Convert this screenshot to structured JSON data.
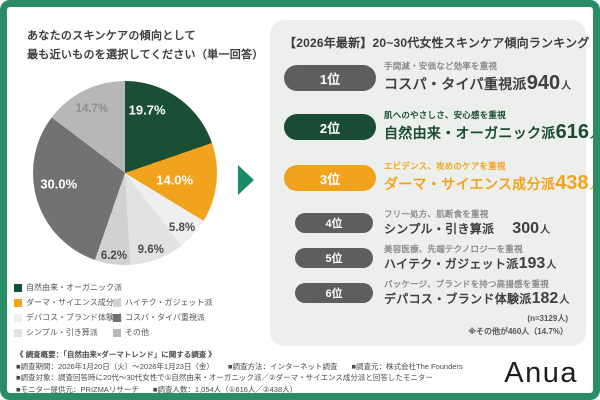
{
  "left": {
    "title_line1": "あなたのスキンケアの傾向として",
    "title_line2": "最も近いものを選択してください（単一回答）"
  },
  "chart_data": {
    "type": "pie",
    "title": "あなたのスキンケアの傾向として最も近いものを選択してください（単一回答）",
    "start_angle_deg": 0,
    "direction": "clockwise",
    "n_total": 3129,
    "slices": [
      {
        "label": "自然由来・オーガニック派",
        "value": 19.7,
        "display": "19.7%",
        "color": "#1a4f36",
        "label_color": "#ffffff"
      },
      {
        "label": "ダーマ・サイエンス成分派",
        "value": 14.0,
        "display": "14.0%",
        "color": "#f2a31d",
        "label_color": "#ffffff"
      },
      {
        "label": "デパコス・ブランド体験派",
        "value": 5.8,
        "display": "5.8%",
        "color": "#efefef",
        "label_color": "#4a4a4a"
      },
      {
        "label": "シンプル・引き算派",
        "value": 9.6,
        "display": "9.6%",
        "color": "#e2e2e2",
        "label_color": "#4a4a4a"
      },
      {
        "label": "ハイテク・ガジェット派",
        "value": 6.2,
        "display": "6.2%",
        "color": "#d1d1d1",
        "label_color": "#4a4a4a"
      },
      {
        "label": "コスパ・タイパ重視派",
        "value": 30.0,
        "display": "30.0%",
        "color": "#727272",
        "label_color": "#ffffff"
      },
      {
        "label": "その他",
        "value": 14.7,
        "display": "14.7%",
        "color": "#b7b7b7",
        "label_color": "#8f8f8f"
      }
    ],
    "legend_order": [
      "自然由来・オーガニック派",
      "ダーマ・サイエンス成分派",
      "デパコス・ブランド体験派",
      "シンプル・引き算派",
      "ハイテク・ガジェット派",
      "コスパ・タイパ重視派",
      "その他"
    ]
  },
  "ranking": {
    "title": "【2026年最新】20~30代女性スキンケア傾向ランキング",
    "items": [
      {
        "rank": "1位",
        "desc": "手間減・安価など効率を重視",
        "label": "コスパ・タイパ重視派",
        "count": "940",
        "unit": "人",
        "pill_color": "#5e5e5e",
        "text_color": "#3f3f3f",
        "desc_color": "#8a8a8a"
      },
      {
        "rank": "2位",
        "desc": "肌へのやさしさ、安心感を重視",
        "label": "自然由来・オーガニック派",
        "count": "616",
        "unit": "人",
        "pill_color": "#1a4b35",
        "text_color": "#1a4b35",
        "desc_color": "#1a4b35"
      },
      {
        "rank": "3位",
        "desc": "エビデンス、攻めのケアを重視",
        "label": "ダーマ・サイエンス成分派",
        "count": "438",
        "unit": "人",
        "pill_color": "#f2a31d",
        "text_color": "#f2a31d",
        "desc_color": "#f2a31d"
      },
      {
        "rank": "4位",
        "desc": "フリー処方、肌断食を重視",
        "label": "シンプル・引き算派",
        "count": "300",
        "unit": "人",
        "pill_color": "#5e5e5e",
        "text_color": "#3f3f3f",
        "desc_color": "#8a8a8a"
      },
      {
        "rank": "5位",
        "desc": "美容医療、先端テクノロジーを重視",
        "label": "ハイテク・ガジェット派",
        "count": "193",
        "unit": "人",
        "pill_color": "#5e5e5e",
        "text_color": "#3f3f3f",
        "desc_color": "#8a8a8a"
      },
      {
        "rank": "6位",
        "desc": "パッケージ、ブランドを持つ高揚感を重視",
        "label": "デパコス・ブランド体験派",
        "count": "182",
        "unit": "人",
        "pill_color": "#5e5e5e",
        "text_color": "#3f3f3f",
        "desc_color": "#8a8a8a"
      }
    ],
    "note_n": "(n=3129人)",
    "note_other": "※その他が460人（14.7%）"
  },
  "footer": {
    "line1": "《 調査概要：「自然由来×ダーマトレンド」に関する調査 》",
    "line2a": "■調査期間：2026年1月20日（火）～2026年1月23日（金）",
    "line2b": "■調査方法：インターネット調査",
    "line2c": "■調査元：株式会社The Founders",
    "line3": "■調査対象：調査回答時に20代～30代女性で①自然由来・オーガニック派／②ダーマ・サイエンス成分派と回答したモニター",
    "line4a": "■モニター提供元：PRIZMAリサーチ",
    "line4b": "■調査人数：1,054人（①616人／②438人）",
    "logo": "Anua"
  },
  "colors": {
    "frame_green": "#2b8c68",
    "arrow_green": "#1b8a68",
    "panel_bg": "#edefec",
    "brand_green": "#1a4f36",
    "brand_orange": "#f2a31d"
  }
}
